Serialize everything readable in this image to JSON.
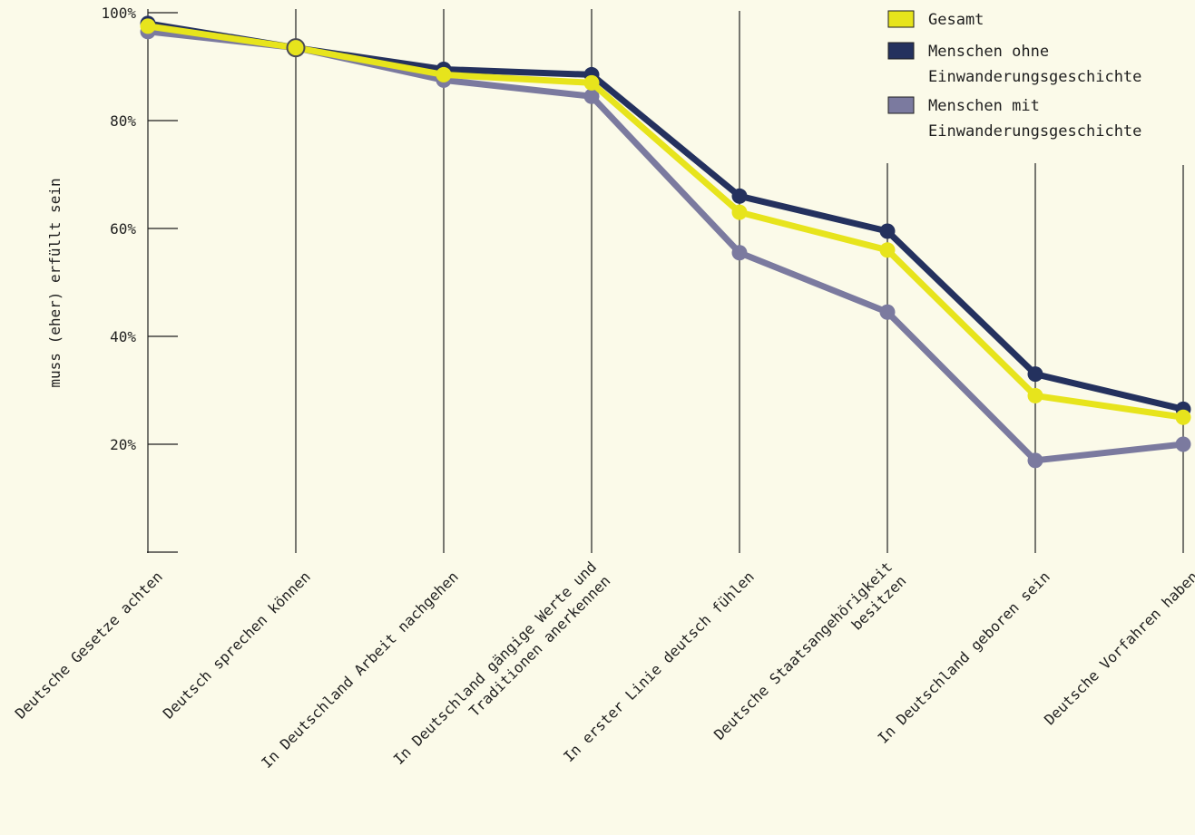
{
  "chart_data": {
    "type": "line",
    "ylabel": "muss (eher) erfüllt sein",
    "xlabel": "",
    "ylim": [
      0,
      100
    ],
    "yticks": [
      20,
      40,
      60,
      80,
      100
    ],
    "ytick_labels": [
      "20%",
      "40%",
      "60%",
      "80%",
      "100%"
    ],
    "categories": [
      [
        "Deutsche Gesetze achten"
      ],
      [
        "Deutsch sprechen können"
      ],
      [
        "In Deutschland Arbeit nachgehen"
      ],
      [
        "In Deutschland gängige Werte und",
        "Traditionen anerkennen"
      ],
      [
        "In erster Linie deutsch fühlen"
      ],
      [
        "Deutsche Staatsangehörigkeit",
        "besitzen"
      ],
      [
        "In Deutschland geboren sein"
      ],
      [
        "Deutsche Vorfahren haben"
      ]
    ],
    "series": [
      {
        "name": "Menschen mit Einwanderungsgeschichte",
        "legend_lines": [
          "Menschen mit",
          "Einwanderungsgeschichte"
        ],
        "color": "#7b7a9f",
        "values": [
          96.5,
          93.5,
          87.5,
          84.5,
          55.5,
          44.5,
          17,
          20
        ]
      },
      {
        "name": "Menschen ohne Einwanderungsgeschichte",
        "legend_lines": [
          "Menschen ohne",
          "Einwanderungsgeschichte"
        ],
        "color": "#24315e",
        "values": [
          98,
          93.5,
          89.5,
          88.5,
          66,
          59.5,
          33,
          26.5
        ]
      },
      {
        "name": "Gesamt",
        "legend_lines": [
          "Gesamt"
        ],
        "color": "#e7e41c",
        "values": [
          97.5,
          93.5,
          88.5,
          87,
          63,
          56,
          29,
          25
        ]
      }
    ],
    "legend_order": [
      2,
      1,
      0
    ],
    "legend_position": "top-right",
    "grid": "vertical lines at categories"
  }
}
